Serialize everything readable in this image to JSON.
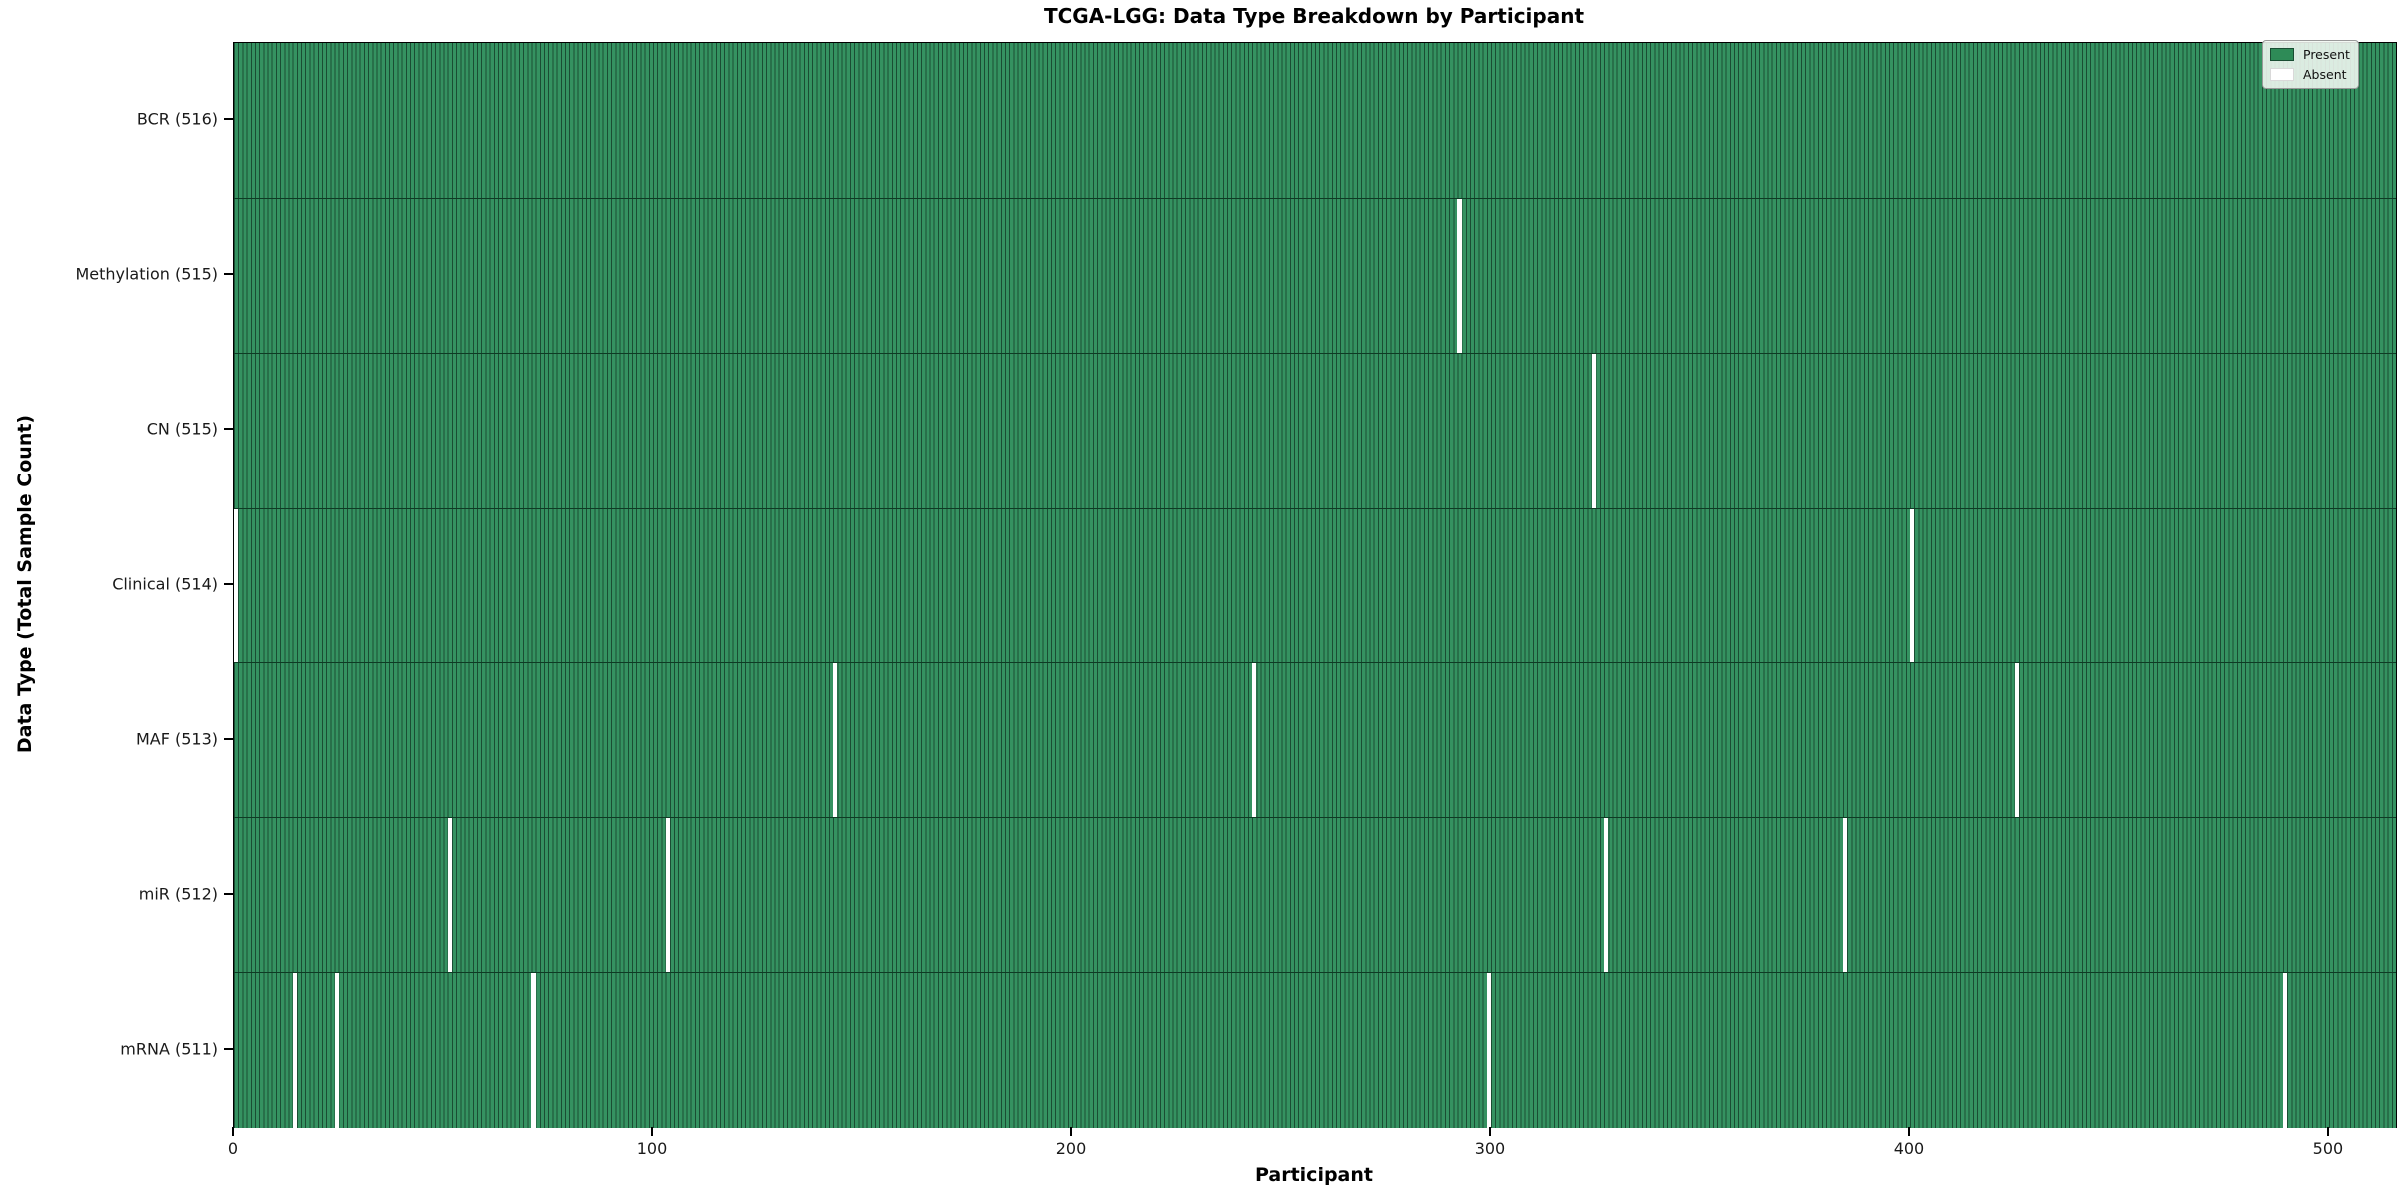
{
  "title": "TCGA-LGG: Data Type Breakdown by Participant",
  "chart_data": {
    "type": "heatmap",
    "title": "TCGA-LGG: Data Type Breakdown by Participant",
    "xlabel": "Participant",
    "ylabel": "Data Type (Total Sample Count)",
    "x_ticks": [
      0,
      100,
      200,
      300,
      400,
      500
    ],
    "x_range": [
      0,
      516
    ],
    "total_participants": 516,
    "grid": false,
    "legend_position": "upper right",
    "legend": [
      {
        "label": "Present",
        "color": "#2e8b57"
      },
      {
        "label": "Absent",
        "color": "#ffffff"
      }
    ],
    "rows": [
      {
        "label": "BCR (516)",
        "data_type": "BCR",
        "count": 516,
        "absent_participants": []
      },
      {
        "label": "Methylation (515)",
        "data_type": "Methylation",
        "count": 515,
        "absent_participants": [
          292
        ]
      },
      {
        "label": "CN (515)",
        "data_type": "CN",
        "count": 515,
        "absent_participants": [
          324
        ]
      },
      {
        "label": "Clinical (514)",
        "data_type": "Clinical",
        "count": 514,
        "absent_participants": [
          0,
          400
        ]
      },
      {
        "label": "MAF (513)",
        "data_type": "MAF",
        "count": 513,
        "absent_participants": [
          143,
          243,
          425
        ]
      },
      {
        "label": "miR (512)",
        "data_type": "miR",
        "count": 512,
        "absent_participants": [
          51,
          103,
          327,
          384
        ]
      },
      {
        "label": "mRNA (511)",
        "data_type": "mRNA",
        "count": 511,
        "absent_participants": [
          14,
          24,
          71,
          299,
          489
        ]
      }
    ],
    "colors": {
      "present_fill": "#359261",
      "bar_edge": "#1a4d33",
      "absent": "#ffffff",
      "legend_present": "#2e8b57"
    }
  }
}
